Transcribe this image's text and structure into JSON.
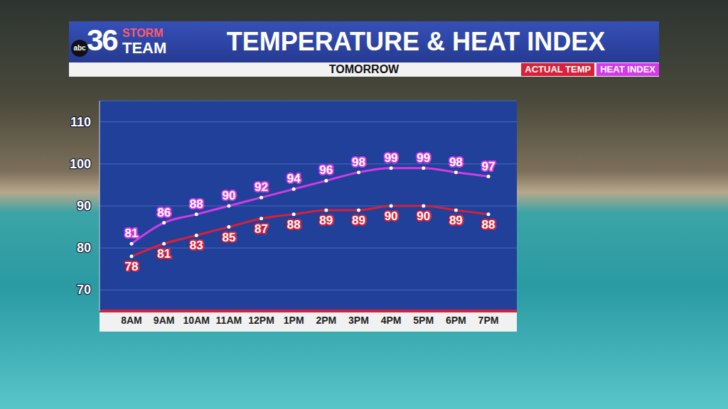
{
  "logo": {
    "network": "abc",
    "channel": "36",
    "brand": [
      "STORM",
      "TEAM"
    ]
  },
  "chart_data": {
    "type": "line",
    "title": "TEMPERATURE & HEAT INDEX",
    "subtitle": "TOMORROW",
    "categories": [
      "8AM",
      "9AM",
      "10AM",
      "11AM",
      "12PM",
      "1PM",
      "2PM",
      "3PM",
      "4PM",
      "5PM",
      "6PM",
      "7PM"
    ],
    "series": [
      {
        "name": "ACTUAL TEMP",
        "color": "#d8203a",
        "marker": "circle",
        "values": [
          78,
          81,
          83,
          85,
          87,
          88,
          89,
          89,
          90,
          90,
          89,
          88
        ]
      },
      {
        "name": "HEAT INDEX",
        "color": "#d23be6",
        "marker": "circle",
        "values": [
          81,
          86,
          88,
          90,
          92,
          94,
          96,
          98,
          99,
          99,
          98,
          97
        ]
      }
    ],
    "ylim": [
      65,
      115
    ],
    "yticks": [
      70,
      80,
      90,
      100,
      110
    ],
    "grid": true,
    "data_labels": true,
    "legend": "top-right"
  }
}
